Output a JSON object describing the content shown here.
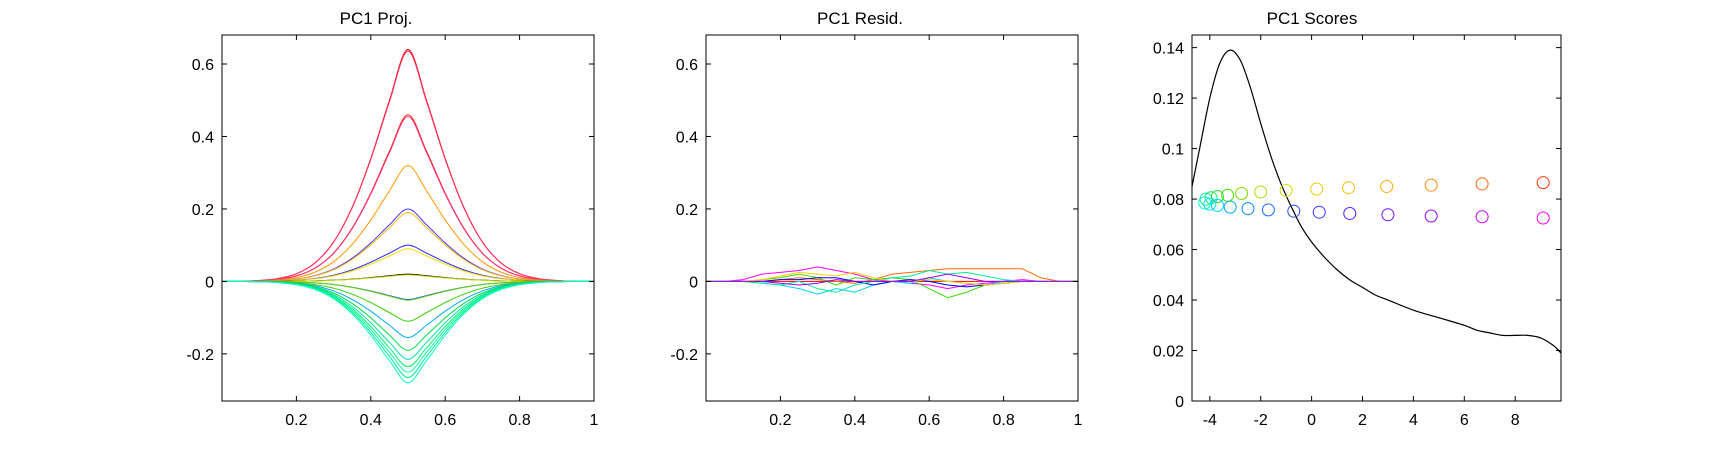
{
  "figure": {
    "background": "#ffffff"
  },
  "chart_data": [
    {
      "type": "line",
      "title": "PC1 Proj.",
      "xlabel": "",
      "ylabel": "",
      "xlim": [
        0,
        1
      ],
      "ylim": [
        -0.33,
        0.68
      ],
      "xticks": [
        0.2,
        0.4,
        0.6,
        0.8,
        1
      ],
      "xtick_labels": [
        "0.2",
        "0.4",
        "0.6",
        "0.8",
        "1"
      ],
      "yticks": [
        -0.2,
        0,
        0.2,
        0.4,
        0.6
      ],
      "ytick_labels": [
        "-0.2",
        "0",
        "0.2",
        "0.4",
        "0.6"
      ],
      "grid": false,
      "curve_shape": "gaussian bump centered at x=0.5, zero outside 0.05-0.95",
      "x": [
        0.05,
        0.1,
        0.15,
        0.2,
        0.25,
        0.3,
        0.35,
        0.4,
        0.45,
        0.5,
        0.55,
        0.6,
        0.65,
        0.7,
        0.75,
        0.8,
        0.85,
        0.9,
        0.95
      ],
      "profile": [
        0.0,
        0.004,
        0.012,
        0.033,
        0.08,
        0.17,
        0.32,
        0.53,
        0.78,
        1.0,
        0.78,
        0.53,
        0.32,
        0.17,
        0.08,
        0.033,
        0.012,
        0.004,
        0.0
      ],
      "series": [
        {
          "peak": 0.64,
          "color": "#ff0000"
        },
        {
          "peak": 0.635,
          "color": "#ff3366"
        },
        {
          "peak": 0.46,
          "color": "#ff2000"
        },
        {
          "peak": 0.455,
          "color": "#ff3388"
        },
        {
          "peak": 0.32,
          "color": "#ff9900"
        },
        {
          "peak": 0.2,
          "color": "#4433ff"
        },
        {
          "peak": 0.19,
          "color": "#ffbb00"
        },
        {
          "peak": 0.1,
          "color": "#2222ff"
        },
        {
          "peak": 0.09,
          "color": "#ffdd00"
        },
        {
          "peak": 0.02,
          "color": "#000000"
        },
        {
          "peak": 0.018,
          "color": "#ccdd00"
        },
        {
          "peak": -0.05,
          "color": "#1144ff"
        },
        {
          "peak": -0.052,
          "color": "#66dd00"
        },
        {
          "peak": -0.11,
          "color": "#33cc00"
        },
        {
          "peak": -0.155,
          "color": "#00aaff"
        },
        {
          "peak": -0.19,
          "color": "#00dd44"
        },
        {
          "peak": -0.215,
          "color": "#00ddaa"
        },
        {
          "peak": -0.235,
          "color": "#00ee66"
        },
        {
          "peak": -0.25,
          "color": "#00ffaa"
        },
        {
          "peak": -0.265,
          "color": "#00ee88"
        },
        {
          "peak": -0.28,
          "color": "#00ffcc"
        }
      ]
    },
    {
      "type": "line",
      "title": "PC1 Resid.",
      "xlabel": "",
      "ylabel": "",
      "xlim": [
        0,
        1
      ],
      "ylim": [
        -0.33,
        0.68
      ],
      "xticks": [
        0.2,
        0.4,
        0.6,
        0.8,
        1
      ],
      "xtick_labels": [
        "0.2",
        "0.4",
        "0.6",
        "0.8",
        "1"
      ],
      "yticks": [
        -0.2,
        0,
        0.2,
        0.4,
        0.6
      ],
      "ytick_labels": [
        "-0.2",
        "0",
        "0.2",
        "0.4",
        "0.6"
      ],
      "grid": false,
      "x": [
        0.05,
        0.1,
        0.15,
        0.2,
        0.25,
        0.3,
        0.35,
        0.4,
        0.45,
        0.5,
        0.55,
        0.6,
        0.65,
        0.7,
        0.75,
        0.8,
        0.85,
        0.9,
        0.95
      ],
      "series": [
        {
          "color": "#ff00ff",
          "values": [
            0,
            0.005,
            0.02,
            0.025,
            0.03,
            0.04,
            0.03,
            0.02,
            0.005,
            0,
            -0.005,
            -0.01,
            -0.02,
            -0.01,
            -0.005,
            0,
            0.005,
            0,
            0
          ]
        },
        {
          "color": "#ff6600",
          "values": [
            0,
            0,
            0,
            0.005,
            0.01,
            0.005,
            0,
            -0.005,
            0.005,
            0.02,
            0.025,
            0.03,
            0.035,
            0.035,
            0.035,
            0.035,
            0.035,
            0.01,
            0
          ]
        },
        {
          "color": "#00ccff",
          "values": [
            0,
            0,
            -0.005,
            -0.01,
            -0.02,
            -0.035,
            -0.02,
            -0.03,
            -0.01,
            0,
            -0.005,
            0.01,
            0,
            -0.005,
            -0.01,
            0,
            0,
            0,
            0
          ]
        },
        {
          "color": "#33dd00",
          "values": [
            0,
            0,
            0.005,
            0.01,
            0.02,
            0.01,
            -0.01,
            0.01,
            0.005,
            0.01,
            0.005,
            -0.02,
            -0.045,
            -0.03,
            -0.01,
            -0.005,
            0,
            0,
            0
          ]
        },
        {
          "color": "#0000ff",
          "values": [
            0,
            0,
            0,
            0.005,
            0.005,
            0.01,
            0.01,
            0,
            -0.01,
            0,
            0.005,
            0,
            -0.01,
            -0.015,
            -0.01,
            -0.005,
            0,
            0,
            0
          ]
        },
        {
          "color": "#00ee99",
          "values": [
            0,
            0,
            -0.005,
            -0.01,
            0,
            -0.02,
            -0.03,
            -0.01,
            0,
            0.01,
            0.015,
            0.03,
            0.02,
            0.025,
            0.015,
            0.005,
            0,
            0,
            0
          ]
        },
        {
          "color": "#ffcc00",
          "values": [
            0,
            0,
            0.005,
            0.015,
            0.025,
            0.02,
            0.015,
            0.025,
            0.01,
            0,
            0,
            0.005,
            0,
            -0.005,
            -0.01,
            -0.005,
            0,
            0,
            0
          ]
        },
        {
          "color": "#9900ff",
          "values": [
            0,
            0,
            0,
            -0.005,
            -0.01,
            -0.005,
            0.005,
            0,
            0,
            0,
            0,
            0.01,
            0.02,
            0.01,
            0,
            0,
            0,
            0,
            0
          ]
        }
      ]
    },
    {
      "type": "line",
      "title": "PC1 Scores",
      "xlabel": "",
      "ylabel": "",
      "xlim": [
        -4.7,
        9.8
      ],
      "ylim": [
        0,
        0.145
      ],
      "xticks": [
        -4,
        -2,
        0,
        2,
        4,
        6,
        8
      ],
      "xtick_labels": [
        "-4",
        "-2",
        "0",
        "2",
        "4",
        "6",
        "8"
      ],
      "yticks": [
        0,
        0.02,
        0.04,
        0.06,
        0.08,
        0.1,
        0.12,
        0.14
      ],
      "ytick_labels": [
        "0",
        "0.02",
        "0.04",
        "0.06",
        "0.08",
        "0.1",
        "0.12",
        "0.14"
      ],
      "grid": false,
      "density": {
        "color": "#000000",
        "x": [
          -4.7,
          -4.4,
          -4.0,
          -3.6,
          -3.2,
          -2.8,
          -2.4,
          -2.0,
          -1.6,
          -1.2,
          -0.8,
          -0.4,
          0.0,
          0.5,
          1.0,
          1.5,
          2.0,
          2.5,
          3.0,
          4.0,
          5.0,
          6.0,
          6.5,
          7.0,
          7.5,
          8.0,
          8.5,
          9.0,
          9.5,
          9.8
        ],
        "y": [
          0.085,
          0.1,
          0.12,
          0.134,
          0.139,
          0.135,
          0.124,
          0.11,
          0.097,
          0.086,
          0.077,
          0.069,
          0.063,
          0.057,
          0.052,
          0.048,
          0.045,
          0.042,
          0.04,
          0.036,
          0.033,
          0.03,
          0.028,
          0.027,
          0.026,
          0.026,
          0.026,
          0.025,
          0.022,
          0.019
        ]
      },
      "upper_points": {
        "y_offset": 0.0095,
        "points": [
          {
            "x": -4.15,
            "y": 0.08,
            "color": "#00e8a0"
          },
          {
            "x": -3.95,
            "y": 0.0805,
            "color": "#00ee66"
          },
          {
            "x": -3.7,
            "y": 0.081,
            "color": "#22dd22"
          },
          {
            "x": -3.3,
            "y": 0.0815,
            "color": "#44dd00"
          },
          {
            "x": -2.75,
            "y": 0.0822,
            "color": "#77dd00"
          },
          {
            "x": -2.0,
            "y": 0.0828,
            "color": "#aadd00"
          },
          {
            "x": -1.0,
            "y": 0.0834,
            "color": "#ccdd00"
          },
          {
            "x": 0.2,
            "y": 0.084,
            "color": "#eecc00"
          },
          {
            "x": 1.45,
            "y": 0.0845,
            "color": "#ffbb00"
          },
          {
            "x": 2.95,
            "y": 0.085,
            "color": "#ffaa00"
          },
          {
            "x": 4.7,
            "y": 0.0855,
            "color": "#ff8800"
          },
          {
            "x": 6.7,
            "y": 0.086,
            "color": "#ff6600"
          },
          {
            "x": 9.1,
            "y": 0.0865,
            "color": "#ff3300"
          }
        ]
      },
      "lower_points": {
        "y_offset": 0.0095,
        "points": [
          {
            "x": -4.2,
            "y": 0.0785,
            "color": "#00ffcc"
          },
          {
            "x": -4.0,
            "y": 0.078,
            "color": "#00e8e8"
          },
          {
            "x": -3.7,
            "y": 0.0775,
            "color": "#00ccff"
          },
          {
            "x": -3.2,
            "y": 0.0768,
            "color": "#00aaff"
          },
          {
            "x": -2.5,
            "y": 0.0762,
            "color": "#0088ff"
          },
          {
            "x": -1.7,
            "y": 0.0757,
            "color": "#1166ff"
          },
          {
            "x": -0.7,
            "y": 0.0752,
            "color": "#2244ff"
          },
          {
            "x": 0.3,
            "y": 0.0748,
            "color": "#3333ff"
          },
          {
            "x": 1.5,
            "y": 0.0743,
            "color": "#4422ff"
          },
          {
            "x": 3.0,
            "y": 0.0738,
            "color": "#7711ff"
          },
          {
            "x": 4.7,
            "y": 0.0733,
            "color": "#9900ff"
          },
          {
            "x": 6.7,
            "y": 0.073,
            "color": "#cc00ff"
          },
          {
            "x": 9.1,
            "y": 0.0725,
            "color": "#ff00ff"
          }
        ]
      }
    }
  ]
}
